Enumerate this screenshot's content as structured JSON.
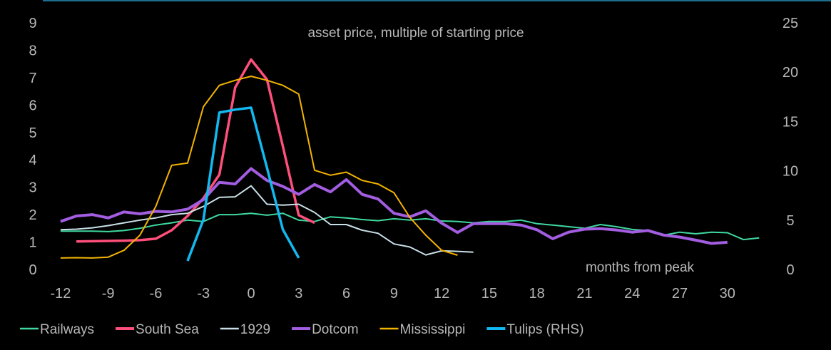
{
  "chart_data": {
    "type": "line",
    "title": "asset price, multiple of starting price",
    "xlabel": "months from peak",
    "ylabel": "",
    "xlim": [
      -12,
      32
    ],
    "ylim": [
      0,
      9
    ],
    "y2lim": [
      0,
      25
    ],
    "x_ticks": [
      -12,
      -9,
      -6,
      -3,
      0,
      3,
      6,
      9,
      12,
      15,
      18,
      21,
      24,
      27,
      30
    ],
    "y_ticks": [
      0,
      1,
      2,
      3,
      4,
      5,
      6,
      7,
      8,
      9
    ],
    "y2_ticks": [
      0,
      5,
      10,
      15,
      20,
      25
    ],
    "grid": false,
    "legend_position": "bottom",
    "series": [
      {
        "name": "Railways",
        "axis": "left",
        "color": "#3fd9a0",
        "width": 2,
        "x_start": -12,
        "values": [
          1.4,
          1.4,
          1.4,
          1.38,
          1.42,
          1.5,
          1.62,
          1.7,
          1.8,
          1.75,
          2.0,
          2.0,
          2.05,
          1.98,
          2.05,
          1.8,
          1.75,
          1.92,
          1.88,
          1.82,
          1.78,
          1.85,
          1.8,
          1.85,
          1.77,
          1.75,
          1.7,
          1.75,
          1.75,
          1.8,
          1.67,
          1.62,
          1.56,
          1.5,
          1.64,
          1.56,
          1.46,
          1.42,
          1.25,
          1.36,
          1.3,
          1.36,
          1.34,
          1.09,
          1.15
        ]
      },
      {
        "name": "South Sea",
        "axis": "left",
        "color": "#ff4f7b",
        "width": 3.5,
        "x_start": -11,
        "values": [
          1.02,
          1.03,
          1.04,
          1.05,
          1.07,
          1.12,
          1.43,
          1.95,
          2.6,
          3.46,
          6.64,
          7.66,
          6.93,
          4.5,
          1.98,
          1.7
        ]
      },
      {
        "name": "1929",
        "axis": "left",
        "color": "#c9dfe8",
        "width": 2,
        "x_start": -12,
        "values": [
          1.45,
          1.47,
          1.52,
          1.6,
          1.7,
          1.8,
          1.88,
          2.0,
          2.05,
          2.3,
          2.63,
          2.65,
          3.05,
          2.38,
          2.35,
          2.38,
          2.08,
          1.64,
          1.64,
          1.43,
          1.32,
          0.93,
          0.82,
          0.53,
          0.68,
          0.66,
          0.63
        ]
      },
      {
        "name": "Dotcom",
        "axis": "left",
        "color": "#a25de0",
        "width": 4,
        "x_start": -12,
        "values": [
          1.75,
          1.95,
          2.0,
          1.88,
          2.1,
          2.03,
          2.12,
          2.1,
          2.2,
          2.55,
          3.18,
          3.12,
          3.68,
          3.25,
          3.03,
          2.74,
          3.1,
          2.83,
          3.28,
          2.74,
          2.57,
          2.05,
          1.92,
          2.14,
          1.69,
          1.35,
          1.67,
          1.67,
          1.67,
          1.62,
          1.45,
          1.12,
          1.36,
          1.47,
          1.49,
          1.44,
          1.36,
          1.42,
          1.25,
          1.18,
          1.07,
          0.95,
          0.99
        ]
      },
      {
        "name": "Mississippi",
        "axis": "left",
        "color": "#f2b300",
        "width": 2,
        "x_start": -12,
        "values": [
          0.42,
          0.43,
          0.42,
          0.45,
          0.7,
          1.25,
          2.3,
          3.8,
          3.88,
          5.94,
          6.72,
          6.9,
          7.05,
          6.9,
          6.72,
          6.4,
          3.62,
          3.44,
          3.55,
          3.25,
          3.12,
          2.8,
          1.9,
          1.25,
          0.7,
          0.52
        ]
      },
      {
        "name": "Tulips (RHS)",
        "axis": "right",
        "color": "#12b9f0",
        "width": 3.5,
        "x_start": -4,
        "values": [
          0.87,
          5.05,
          15.9,
          16.2,
          16.4,
          10.3,
          4.05,
          1.16
        ]
      }
    ]
  },
  "frame": {
    "top_rule_color": "#1d6e8e"
  }
}
